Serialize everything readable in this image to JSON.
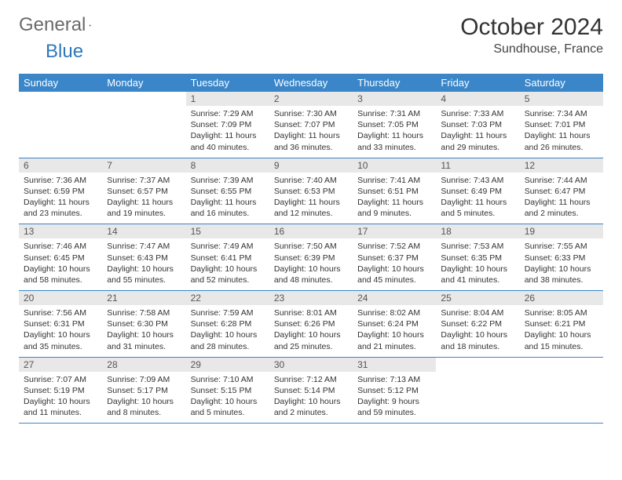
{
  "logo": {
    "text_grey": "General",
    "text_blue": "Blue"
  },
  "header": {
    "month": "October 2024",
    "location": "Sundhouse, France"
  },
  "colors": {
    "header_bg": "#3a86c8",
    "header_text": "#ffffff",
    "daynum_bg": "#e8e8e8",
    "row_border": "#3a86c8",
    "logo_grey": "#6a6a6a",
    "logo_blue": "#2e78bb"
  },
  "weekdays": [
    "Sunday",
    "Monday",
    "Tuesday",
    "Wednesday",
    "Thursday",
    "Friday",
    "Saturday"
  ],
  "weeks": [
    [
      null,
      null,
      {
        "n": "1",
        "sr": "Sunrise: 7:29 AM",
        "ss": "Sunset: 7:09 PM",
        "dl": "Daylight: 11 hours and 40 minutes."
      },
      {
        "n": "2",
        "sr": "Sunrise: 7:30 AM",
        "ss": "Sunset: 7:07 PM",
        "dl": "Daylight: 11 hours and 36 minutes."
      },
      {
        "n": "3",
        "sr": "Sunrise: 7:31 AM",
        "ss": "Sunset: 7:05 PM",
        "dl": "Daylight: 11 hours and 33 minutes."
      },
      {
        "n": "4",
        "sr": "Sunrise: 7:33 AM",
        "ss": "Sunset: 7:03 PM",
        "dl": "Daylight: 11 hours and 29 minutes."
      },
      {
        "n": "5",
        "sr": "Sunrise: 7:34 AM",
        "ss": "Sunset: 7:01 PM",
        "dl": "Daylight: 11 hours and 26 minutes."
      }
    ],
    [
      {
        "n": "6",
        "sr": "Sunrise: 7:36 AM",
        "ss": "Sunset: 6:59 PM",
        "dl": "Daylight: 11 hours and 23 minutes."
      },
      {
        "n": "7",
        "sr": "Sunrise: 7:37 AM",
        "ss": "Sunset: 6:57 PM",
        "dl": "Daylight: 11 hours and 19 minutes."
      },
      {
        "n": "8",
        "sr": "Sunrise: 7:39 AM",
        "ss": "Sunset: 6:55 PM",
        "dl": "Daylight: 11 hours and 16 minutes."
      },
      {
        "n": "9",
        "sr": "Sunrise: 7:40 AM",
        "ss": "Sunset: 6:53 PM",
        "dl": "Daylight: 11 hours and 12 minutes."
      },
      {
        "n": "10",
        "sr": "Sunrise: 7:41 AM",
        "ss": "Sunset: 6:51 PM",
        "dl": "Daylight: 11 hours and 9 minutes."
      },
      {
        "n": "11",
        "sr": "Sunrise: 7:43 AM",
        "ss": "Sunset: 6:49 PM",
        "dl": "Daylight: 11 hours and 5 minutes."
      },
      {
        "n": "12",
        "sr": "Sunrise: 7:44 AM",
        "ss": "Sunset: 6:47 PM",
        "dl": "Daylight: 11 hours and 2 minutes."
      }
    ],
    [
      {
        "n": "13",
        "sr": "Sunrise: 7:46 AM",
        "ss": "Sunset: 6:45 PM",
        "dl": "Daylight: 10 hours and 58 minutes."
      },
      {
        "n": "14",
        "sr": "Sunrise: 7:47 AM",
        "ss": "Sunset: 6:43 PM",
        "dl": "Daylight: 10 hours and 55 minutes."
      },
      {
        "n": "15",
        "sr": "Sunrise: 7:49 AM",
        "ss": "Sunset: 6:41 PM",
        "dl": "Daylight: 10 hours and 52 minutes."
      },
      {
        "n": "16",
        "sr": "Sunrise: 7:50 AM",
        "ss": "Sunset: 6:39 PM",
        "dl": "Daylight: 10 hours and 48 minutes."
      },
      {
        "n": "17",
        "sr": "Sunrise: 7:52 AM",
        "ss": "Sunset: 6:37 PM",
        "dl": "Daylight: 10 hours and 45 minutes."
      },
      {
        "n": "18",
        "sr": "Sunrise: 7:53 AM",
        "ss": "Sunset: 6:35 PM",
        "dl": "Daylight: 10 hours and 41 minutes."
      },
      {
        "n": "19",
        "sr": "Sunrise: 7:55 AM",
        "ss": "Sunset: 6:33 PM",
        "dl": "Daylight: 10 hours and 38 minutes."
      }
    ],
    [
      {
        "n": "20",
        "sr": "Sunrise: 7:56 AM",
        "ss": "Sunset: 6:31 PM",
        "dl": "Daylight: 10 hours and 35 minutes."
      },
      {
        "n": "21",
        "sr": "Sunrise: 7:58 AM",
        "ss": "Sunset: 6:30 PM",
        "dl": "Daylight: 10 hours and 31 minutes."
      },
      {
        "n": "22",
        "sr": "Sunrise: 7:59 AM",
        "ss": "Sunset: 6:28 PM",
        "dl": "Daylight: 10 hours and 28 minutes."
      },
      {
        "n": "23",
        "sr": "Sunrise: 8:01 AM",
        "ss": "Sunset: 6:26 PM",
        "dl": "Daylight: 10 hours and 25 minutes."
      },
      {
        "n": "24",
        "sr": "Sunrise: 8:02 AM",
        "ss": "Sunset: 6:24 PM",
        "dl": "Daylight: 10 hours and 21 minutes."
      },
      {
        "n": "25",
        "sr": "Sunrise: 8:04 AM",
        "ss": "Sunset: 6:22 PM",
        "dl": "Daylight: 10 hours and 18 minutes."
      },
      {
        "n": "26",
        "sr": "Sunrise: 8:05 AM",
        "ss": "Sunset: 6:21 PM",
        "dl": "Daylight: 10 hours and 15 minutes."
      }
    ],
    [
      {
        "n": "27",
        "sr": "Sunrise: 7:07 AM",
        "ss": "Sunset: 5:19 PM",
        "dl": "Daylight: 10 hours and 11 minutes."
      },
      {
        "n": "28",
        "sr": "Sunrise: 7:09 AM",
        "ss": "Sunset: 5:17 PM",
        "dl": "Daylight: 10 hours and 8 minutes."
      },
      {
        "n": "29",
        "sr": "Sunrise: 7:10 AM",
        "ss": "Sunset: 5:15 PM",
        "dl": "Daylight: 10 hours and 5 minutes."
      },
      {
        "n": "30",
        "sr": "Sunrise: 7:12 AM",
        "ss": "Sunset: 5:14 PM",
        "dl": "Daylight: 10 hours and 2 minutes."
      },
      {
        "n": "31",
        "sr": "Sunrise: 7:13 AM",
        "ss": "Sunset: 5:12 PM",
        "dl": "Daylight: 9 hours and 59 minutes."
      },
      null,
      null
    ]
  ]
}
